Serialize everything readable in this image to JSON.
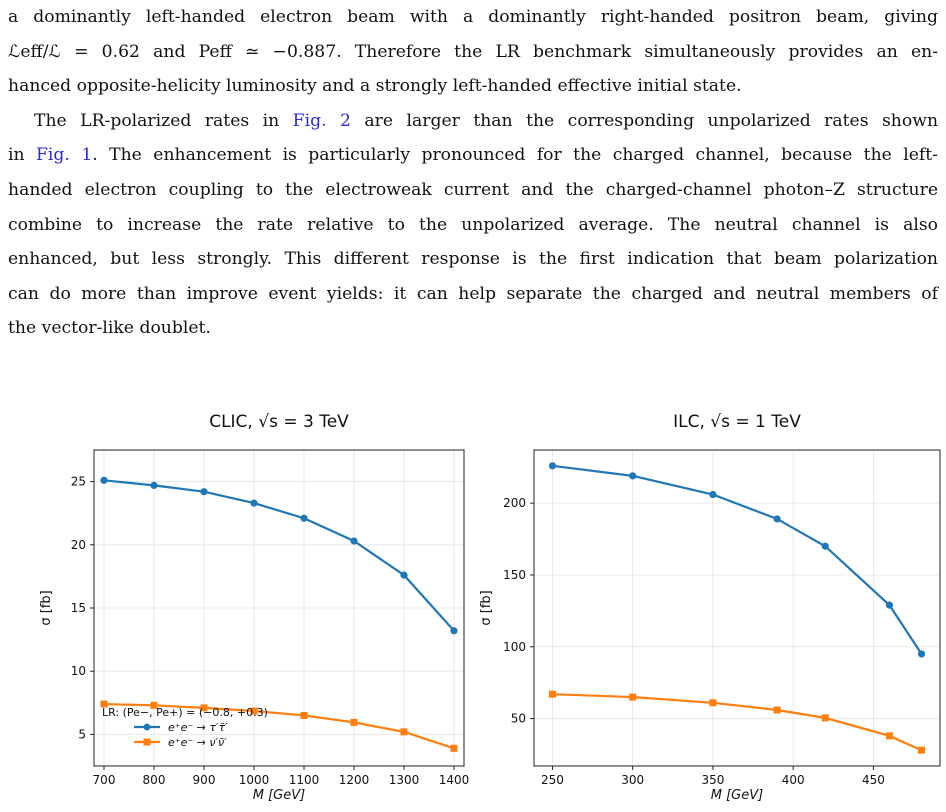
{
  "paragraph1": {
    "line1": "a dominantly left-handed electron beam with a dominantly right-handed positron beam, giving",
    "line2": "ℒeff/ℒ = 0.62 and Peff ≃ −0.887. Therefore the LR benchmark simultaneously provides an en-",
    "line3": "hanced opposite-helicity luminosity and a strongly left-handed effective initial state."
  },
  "paragraph2": {
    "line1_a": "The LR-polarized rates in ",
    "fig2": "Fig. 2",
    "line1_b": " are larger than the corresponding unpolarized rates shown",
    "line2_a": "in ",
    "fig1": "Fig. 1",
    "line2_b": ". The enhancement is particularly pronounced for the charged channel, because the left-",
    "line3": "handed electron coupling to the electroweak current and the charged-channel photon–Z structure",
    "line4": "combine to increase the rate relative to the unpolarized average. The neutral channel is also",
    "line5": "enhanced, but less strongly. This different response is the first indication that beam polarization",
    "line6": "can do more than improve event yields: it can help separate the charged and neutral members of",
    "line7": "the vector-like doublet."
  },
  "chart_data": [
    {
      "type": "line",
      "title": "CLIC, √s = 3 TeV",
      "xlabel": "M [GeV]",
      "ylabel": "σ [fb]",
      "x": [
        700,
        800,
        900,
        1000,
        1100,
        1200,
        1300,
        1400
      ],
      "xlim": [
        680,
        1420
      ],
      "ylim": [
        2.5,
        27.5
      ],
      "xticks": [
        "700",
        "800",
        "900",
        "1000",
        "1100",
        "1200",
        "1300",
        "1400"
      ],
      "yticks": [
        "5",
        "10",
        "15",
        "20",
        "25"
      ],
      "grid": true,
      "legend_title": "LR: (Pe−, Pe+) = (−0.8, +0.3)",
      "legend_position": "lower-left",
      "series": [
        {
          "name": "e⁺e⁻ → τ′τ̄′",
          "color": "#1f77b4",
          "marker": "circle",
          "values": [
            25.1,
            24.7,
            24.2,
            23.3,
            22.1,
            20.3,
            17.6,
            13.2
          ]
        },
        {
          "name": "e⁺e⁻ → ν′ν̄′",
          "color": "#ff7f0e",
          "marker": "square",
          "values": [
            7.4,
            7.3,
            7.1,
            6.85,
            6.5,
            5.95,
            5.2,
            3.9
          ]
        }
      ]
    },
    {
      "type": "line",
      "title": "ILC, √s = 1 TeV",
      "xlabel": "M [GeV]",
      "ylabel": "σ [fb]",
      "x": [
        250,
        300,
        350,
        390,
        420,
        460,
        480
      ],
      "xlim": [
        238.5,
        491.5
      ],
      "ylim": [
        17,
        237
      ],
      "xticks": [
        "250",
        "300",
        "350",
        "400",
        "450"
      ],
      "yticks": [
        "50",
        "100",
        "150",
        "200"
      ],
      "grid": true,
      "series": [
        {
          "name": "e⁺e⁻ → τ′τ̄′",
          "color": "#1f77b4",
          "marker": "circle",
          "values": [
            226,
            219,
            206,
            189,
            170,
            129,
            95
          ]
        },
        {
          "name": "e⁺e⁻ → ν′ν̄′",
          "color": "#ff7f0e",
          "marker": "square",
          "values": [
            67,
            65,
            61,
            56,
            50.5,
            38,
            28
          ]
        }
      ]
    }
  ]
}
